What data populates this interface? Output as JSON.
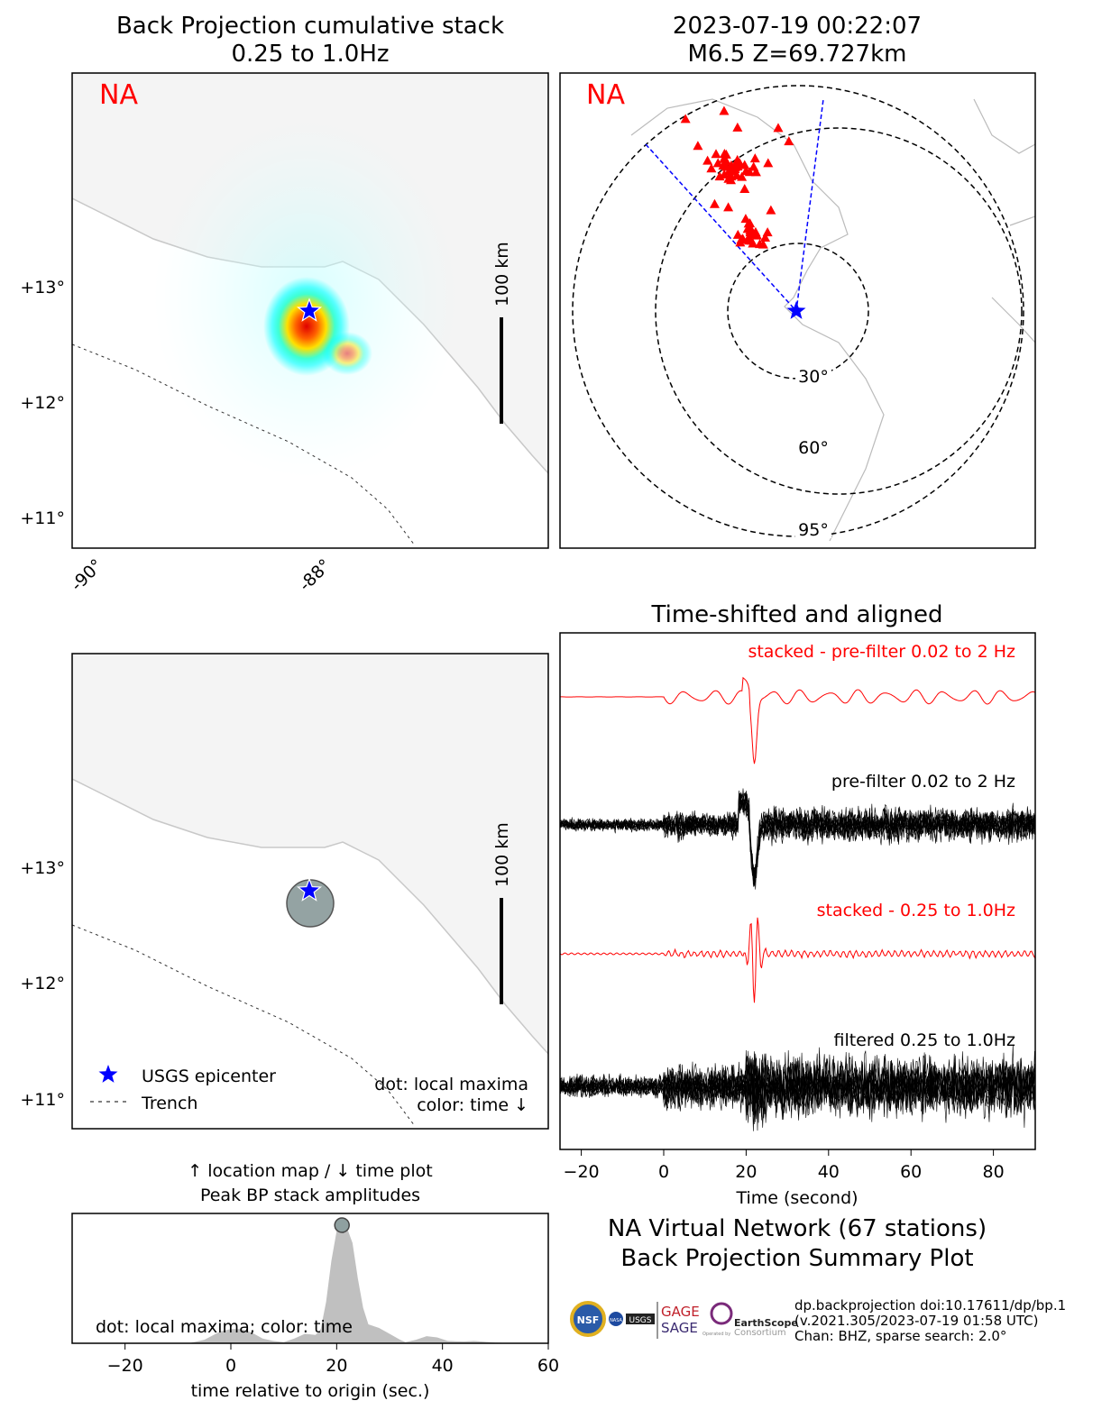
{
  "panel_bp": {
    "title_line1": "Back Projection cumulative stack",
    "title_line2": "0.25 to 1.0Hz",
    "network_label": "NA",
    "lat_ticks": [
      "+13°",
      "+12°",
      "+11°"
    ],
    "lon_ticks": [
      "-90°",
      "-88°"
    ],
    "scale_label": "100 km"
  },
  "panel_net": {
    "title_line1": "2023-07-19 00:22:07",
    "title_line2": "M6.5 Z=69.727km",
    "network_label": "NA",
    "distance_labels": [
      "30°",
      "60°",
      "95°"
    ],
    "station_count": 67
  },
  "panel_loc": {
    "lat_ticks": [
      "+13°",
      "+12°",
      "+11°"
    ],
    "scale_label": "100 km",
    "legend": [
      {
        "label": "USGS epicenter",
        "icon": "star-icon",
        "color": "#0000ff"
      },
      {
        "label": "Trench",
        "icon": "dashed-line-icon",
        "color": "#000000"
      }
    ],
    "note_line1": "dot: local maxima",
    "note_line2": "color: time ↓"
  },
  "panel_traces": {
    "title": "Time-shifted and aligned",
    "labels": [
      "stacked - pre-filter 0.02 to 2 Hz",
      "pre-filter 0.02 to 2 Hz",
      "stacked - 0.25 to 1.0Hz",
      "filtered 0.25 to 1.0Hz"
    ],
    "label_colors": [
      "#ff0000",
      "#000000",
      "#ff0000",
      "#000000"
    ],
    "x_ticks": [
      "−20",
      "0",
      "20",
      "40",
      "60",
      "80"
    ],
    "xlabel": "Time (second)"
  },
  "summary": {
    "line1": "NA Virtual Network (67 stations)",
    "line2": "Back Projection Summary Plot",
    "info_line1": "dp.backprojection doi:10.17611/dp/bp.1",
    "info_line2": "(v.2021.305/2023-07-19 01:58 UTC)",
    "info_line3": "Chan: BHZ, sparse search: 2.0°",
    "logos": [
      "NSF",
      "NASA",
      "USGS",
      "GAGE",
      "SAGE",
      "EarthScope",
      "Operated by",
      "Consortium"
    ]
  },
  "chart_data": {
    "type": "area",
    "title": "↑ location map / ↓ time plot",
    "subtitle": "Peak BP stack amplitudes",
    "xlabel": "time relative to origin (sec.)",
    "ylabel": "",
    "xlim": [
      -30,
      60
    ],
    "x_ticks": [
      "−20",
      "0",
      "20",
      "40",
      "60"
    ],
    "annotation": "dot: local maxima; color: time",
    "x": [
      -30,
      -8,
      -5,
      -2,
      0,
      2,
      4,
      6,
      8,
      10,
      12,
      14,
      16,
      17,
      18,
      19,
      20,
      21,
      22,
      23,
      24,
      25,
      26,
      28,
      30,
      32,
      33,
      35,
      37,
      39,
      41,
      44,
      46,
      50,
      55,
      60
    ],
    "y": [
      0,
      0,
      0.03,
      0.1,
      0.12,
      0.12,
      0.09,
      0.04,
      0.02,
      0.01,
      0.04,
      0.08,
      0.07,
      0.12,
      0.35,
      0.7,
      0.95,
      1.0,
      0.97,
      0.85,
      0.55,
      0.3,
      0.16,
      0.13,
      0.08,
      0.03,
      0.01,
      0.03,
      0.06,
      0.05,
      0.02,
      0.015,
      0.02,
      0.005,
      0,
      0
    ],
    "local_maxima": [
      {
        "x": 21,
        "y": 1.0
      }
    ],
    "fill_color": "#c0c0c0",
    "dot_color": "#8fa0a0"
  }
}
